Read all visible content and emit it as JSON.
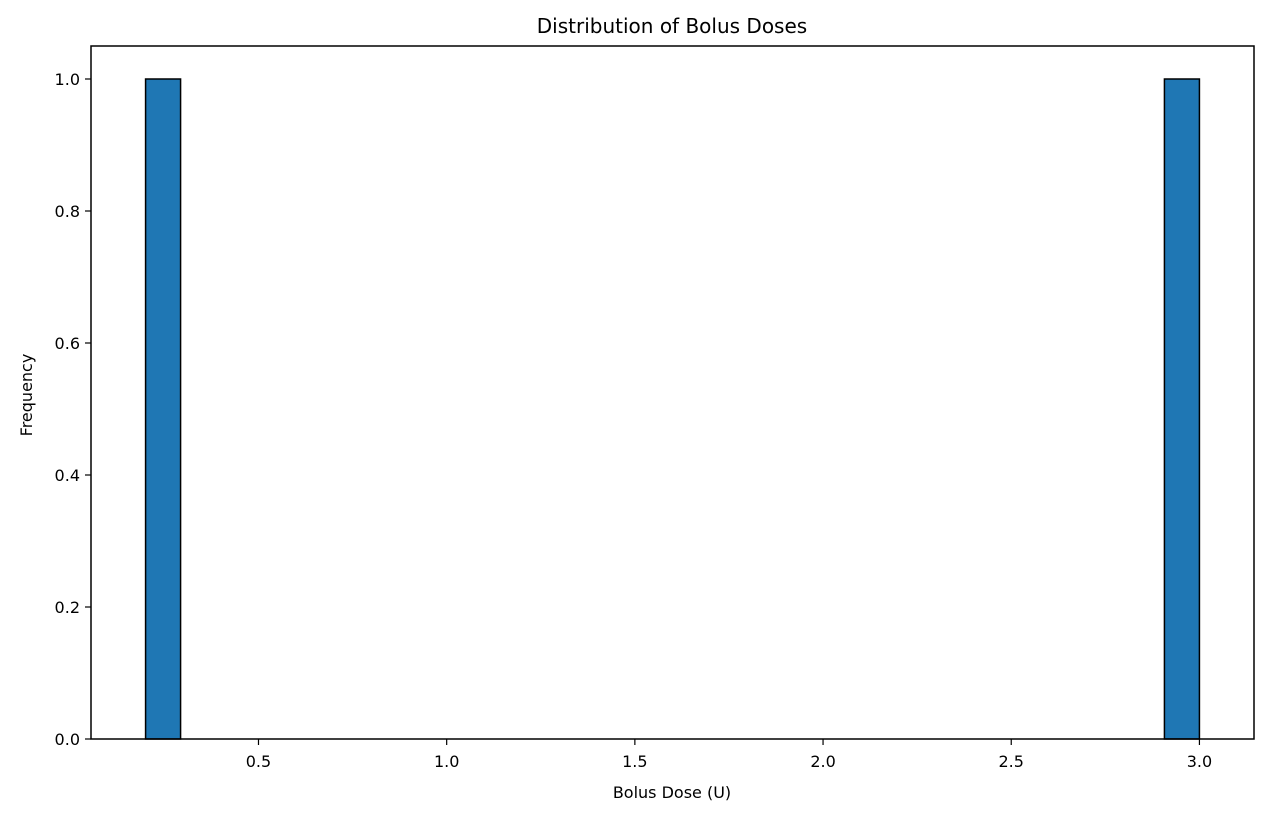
{
  "chart_data": {
    "type": "bar",
    "title": "Distribution of Bolus Doses",
    "xlabel": "Bolus Dose (U)",
    "ylabel": "Frequency",
    "xlim": [
      0.055,
      3.145
    ],
    "ylim": [
      0,
      1.05
    ],
    "xticks": [
      0.5,
      1.0,
      1.5,
      2.0,
      2.5,
      3.0
    ],
    "xtick_labels": [
      "0.5",
      "1.0",
      "1.5",
      "2.0",
      "2.5",
      "3.0"
    ],
    "yticks": [
      0.0,
      0.2,
      0.4,
      0.6,
      0.8,
      1.0
    ],
    "ytick_labels": [
      "0.0",
      "0.2",
      "0.4",
      "0.6",
      "0.8",
      "1.0"
    ],
    "grid": false,
    "bar_color": "#1f77b4",
    "edge_color": "#000000",
    "bins": [
      {
        "x0": 0.2,
        "x1": 0.293,
        "count": 1
      },
      {
        "x0": 2.907,
        "x1": 3.0,
        "count": 1
      }
    ]
  }
}
